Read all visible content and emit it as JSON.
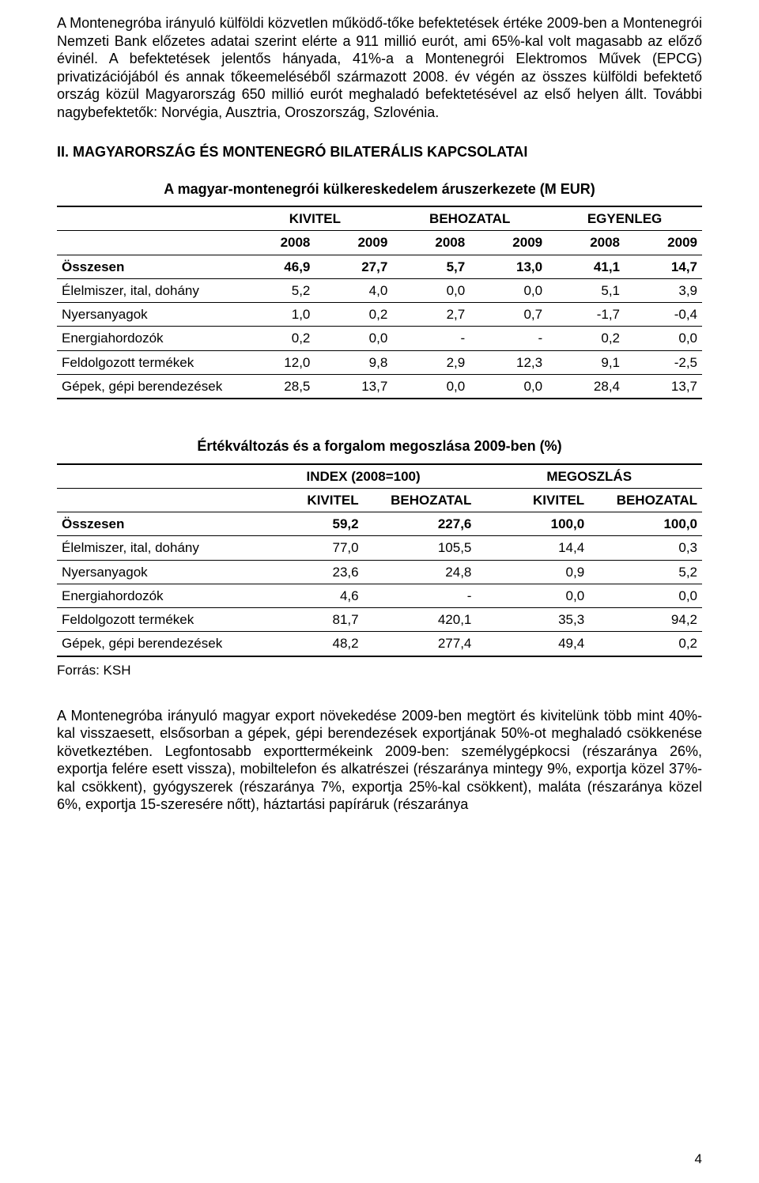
{
  "para1": "A Montenegróba irányuló külföldi közvetlen működő-tőke befektetések értéke 2009-ben a Montenegrói Nemzeti Bank előzetes adatai szerint elérte a 911 millió eurót, ami 65%-kal volt magasabb az előző évinél. A befektetések jelentős hányada, 41%-a a Montenegrói Elektromos Művek (EPCG) privatizációjából és annak tőkeemeléséből származott 2008. év végén az összes külföldi befektető ország közül Magyarország 650 millió eurót meghaladó befektetésével az első helyen állt. További nagybefektetők: Norvégia, Ausztria, Oroszország, Szlovénia.",
  "section_heading": "II. MAGYARORSZÁG ÉS MONTENEGRÓ BILATERÁLIS KAPCSOLATAI",
  "table1": {
    "title": "A magyar-montenegrói külkereskedelem áruszerkezete (M EUR)",
    "group_headers": [
      "KIVITEL",
      "BEHOZATAL",
      "EGYENLEG"
    ],
    "years": [
      "2008",
      "2009",
      "2008",
      "2009",
      "2008",
      "2009"
    ],
    "rows": [
      {
        "label": "Összesen",
        "values": [
          "46,9",
          "27,7",
          "5,7",
          "13,0",
          "41,1",
          "14,7"
        ],
        "bold": true
      },
      {
        "label": "Élelmiszer, ital, dohány",
        "values": [
          "5,2",
          "4,0",
          "0,0",
          "0,0",
          "5,1",
          "3,9"
        ]
      },
      {
        "label": "Nyersanyagok",
        "values": [
          "1,0",
          "0,2",
          "2,7",
          "0,7",
          "-1,7",
          "-0,4"
        ]
      },
      {
        "label": "Energiahordozók",
        "values": [
          "0,2",
          "0,0",
          "-",
          "-",
          "0,2",
          "0,0"
        ]
      },
      {
        "label": "Feldolgozott termékek",
        "values": [
          "12,0",
          "9,8",
          "2,9",
          "12,3",
          "9,1",
          "-2,5"
        ]
      },
      {
        "label": "Gépek, gépi berendezések",
        "values": [
          "28,5",
          "13,7",
          "0,0",
          "0,0",
          "28,4",
          "13,7"
        ]
      }
    ]
  },
  "table2": {
    "title": "Értékváltozás és a forgalom megoszlása 2009-ben (%)",
    "group_headers": [
      "INDEX (2008=100)",
      "MEGOSZLÁS"
    ],
    "sub_headers": [
      "KIVITEL",
      "BEHOZATAL",
      "KIVITEL",
      "BEHOZATAL"
    ],
    "rows": [
      {
        "label": "Összesen",
        "values": [
          "59,2",
          "227,6",
          "100,0",
          "100,0"
        ],
        "bold": true
      },
      {
        "label": "Élelmiszer, ital, dohány",
        "values": [
          "77,0",
          "105,5",
          "14,4",
          "0,3"
        ]
      },
      {
        "label": "Nyersanyagok",
        "values": [
          "23,6",
          "24,8",
          "0,9",
          "5,2"
        ]
      },
      {
        "label": "Energiahordozók",
        "values": [
          "4,6",
          "-",
          "0,0",
          "0,0"
        ]
      },
      {
        "label": "Feldolgozott termékek",
        "values": [
          "81,7",
          "420,1",
          "35,3",
          "94,2"
        ]
      },
      {
        "label": "Gépek, gépi berendezések",
        "values": [
          "48,2",
          "277,4",
          "49,4",
          "0,2"
        ]
      }
    ],
    "source": "Forrás: KSH"
  },
  "para2": "A Montenegróba irányuló magyar export növekedése 2009-ben megtört és kivitelünk több mint 40%-kal visszaesett, elsősorban a gépek, gépi berendezések exportjának 50%-ot meghaladó csökkenése következtében. Legfontosabb exporttermékeink 2009-ben: személygépkocsi (részaránya 26%, exportja felére esett vissza), mobiltelefon és alkatrészei (részaránya mintegy 9%, exportja közel 37%-kal csökkent), gyógyszerek (részaránya 7%, exportja 25%-kal csökkent), maláta (részaránya közel 6%, exportja 15-szeresére nőtt), háztartási papíráruk (részaránya",
  "page_number": "4"
}
